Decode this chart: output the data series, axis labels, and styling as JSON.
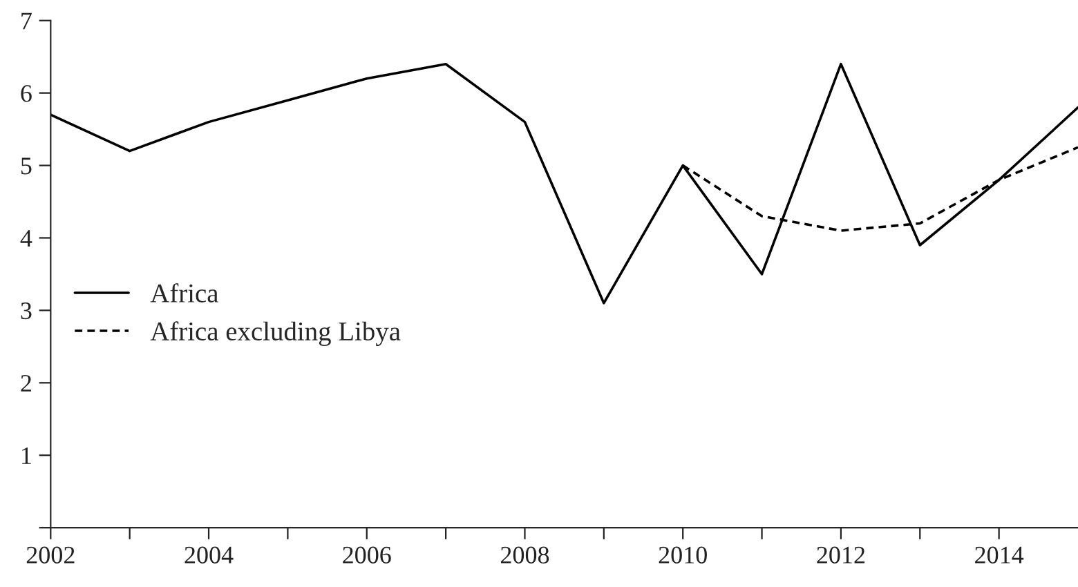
{
  "chart_data": {
    "type": "line",
    "x": [
      2002,
      2003,
      2004,
      2005,
      2006,
      2007,
      2008,
      2009,
      2010,
      2011,
      2012,
      2013,
      2014,
      2015
    ],
    "series": [
      {
        "name": "Africa",
        "color": "#000000",
        "line_style": "solid",
        "values": [
          5.7,
          5.2,
          5.6,
          5.9,
          6.2,
          6.4,
          5.6,
          3.1,
          5.0,
          3.5,
          6.4,
          3.9,
          4.8,
          5.8
        ]
      },
      {
        "name": "Africa excluding Libya",
        "color": "#000000",
        "line_style": "dashed",
        "values": [
          null,
          null,
          null,
          null,
          null,
          null,
          null,
          null,
          5.0,
          4.3,
          4.1,
          4.2,
          4.8,
          5.25
        ]
      }
    ],
    "xlim": [
      2002,
      2015
    ],
    "xticks": [
      2002,
      {
        "value": 2003,
        "label": null
      },
      2004,
      {
        "value": 2005,
        "label": null
      },
      2006,
      {
        "value": 2007,
        "label": null
      },
      2008,
      {
        "value": 2009,
        "label": null
      },
      2010,
      {
        "value": 2011,
        "label": null
      },
      2012,
      {
        "value": 2013,
        "label": null
      },
      2014
    ],
    "ylim": [
      0,
      7
    ],
    "yticks": [
      {
        "value": 0,
        "label": null
      },
      1,
      2,
      3,
      4,
      5,
      6,
      7
    ],
    "grid": false,
    "legend": "left",
    "marker": "none"
  }
}
